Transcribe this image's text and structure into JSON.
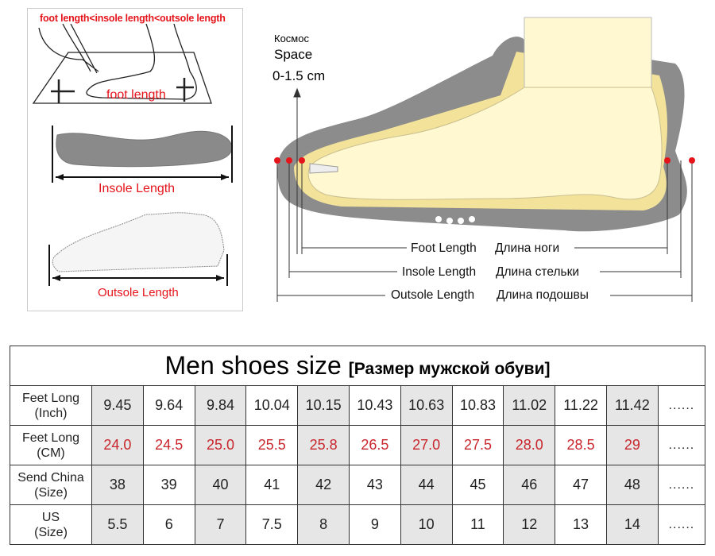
{
  "left_panel": {
    "comparison": "foot length<insole length<outsole length",
    "foot_length": "foot length",
    "insole_length": "Insole Length",
    "outsole_length": "Outsole Length"
  },
  "diagram": {
    "space_ru": "Космос",
    "space_en": "Space",
    "space_range": "0-1.5 cm",
    "foot_length_en": "Foot Length",
    "foot_length_ru": "Длина ноги",
    "insole_length_en": "Insole Length",
    "insole_length_ru": "Длина стельки",
    "outsole_length_en": "Outsole Length",
    "outsole_length_ru": "Длина подошвы",
    "marker_color": "#e5141b"
  },
  "table": {
    "title": "Men shoes size",
    "subtitle": "[Размер мужской обуви]",
    "more": "......",
    "rows": [
      {
        "label1": "Feet Long",
        "label2": "(Inch)",
        "values": [
          "9.45",
          "9.64",
          "9.84",
          "10.04",
          "10.15",
          "10.43",
          "10.63",
          "10.83",
          "11.02",
          "11.22",
          "11.42"
        ]
      },
      {
        "label1": "Feet Long",
        "label2": "(CM)",
        "values": [
          "24.0",
          "24.5",
          "25.0",
          "25.5",
          "25.8",
          "26.5",
          "27.0",
          "27.5",
          "28.0",
          "28.5",
          "29"
        ]
      },
      {
        "label1": "Send China",
        "label2": "(Size)",
        "values": [
          "38",
          "39",
          "40",
          "41",
          "42",
          "43",
          "44",
          "45",
          "46",
          "47",
          "48"
        ]
      },
      {
        "label1": "US",
        "label2": "(Size)",
        "values": [
          "5.5",
          "6",
          "7",
          "7.5",
          "8",
          "9",
          "10",
          "11",
          "12",
          "13",
          "14"
        ]
      }
    ],
    "cm_color": "#c8262c",
    "shade_color": "#e6e6e6"
  }
}
